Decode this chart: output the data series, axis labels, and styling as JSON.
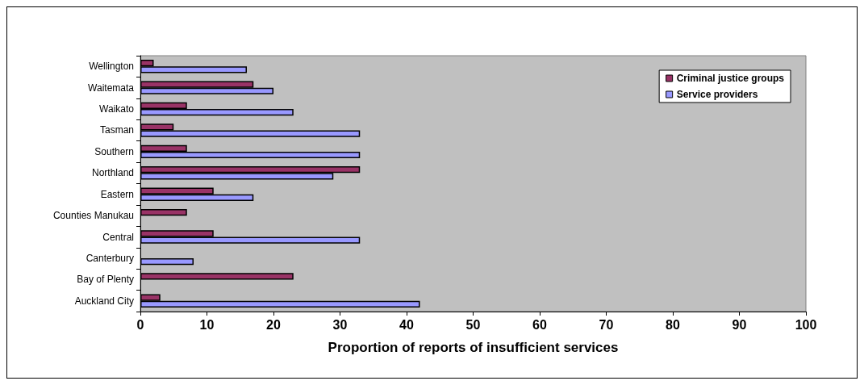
{
  "chart_data": {
    "type": "bar",
    "orientation": "horizontal",
    "xlabel": "Proportion of reports of insufficient services",
    "categories": [
      "Wellington",
      "Waitemata",
      "Waikato",
      "Tasman",
      "Southern",
      "Northland",
      "Eastern",
      "Counties Manukau",
      "Central",
      "Canterbury",
      "Bay of Plenty",
      "Auckland City"
    ],
    "series": [
      {
        "name": "Criminal justice groups",
        "color": "#993366",
        "values": [
          2,
          17,
          7,
          5,
          7,
          33,
          11,
          7,
          11,
          null,
          23,
          3
        ]
      },
      {
        "name": "Service providers",
        "color": "#9999ff",
        "values": [
          16,
          20,
          23,
          33,
          33,
          29,
          17,
          null,
          33,
          8,
          null,
          42
        ]
      }
    ],
    "xlim": [
      0,
      100
    ],
    "xticks": [
      0,
      10,
      20,
      30,
      40,
      50,
      60,
      70,
      80,
      90,
      100
    ],
    "grid": false,
    "legend": "top right"
  }
}
